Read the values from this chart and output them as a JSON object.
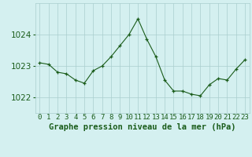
{
  "x": [
    0,
    1,
    2,
    3,
    4,
    5,
    6,
    7,
    8,
    9,
    10,
    11,
    12,
    13,
    14,
    15,
    16,
    17,
    18,
    19,
    20,
    21,
    22,
    23
  ],
  "y": [
    1023.1,
    1023.05,
    1022.8,
    1022.75,
    1022.55,
    1022.45,
    1022.85,
    1023.0,
    1023.3,
    1023.65,
    1024.0,
    1024.5,
    1023.85,
    1023.3,
    1022.55,
    1022.2,
    1022.2,
    1022.1,
    1022.05,
    1022.4,
    1022.6,
    1022.55,
    1022.9,
    1023.2
  ],
  "line_color": "#1a5c1a",
  "marker": "+",
  "marker_color": "#1a5c1a",
  "bg_color": "#d4f0f0",
  "grid_color": "#aacece",
  "tick_label_color": "#1a5c1a",
  "ylabel_ticks": [
    1022,
    1023,
    1024
  ],
  "ylim": [
    1021.5,
    1025.0
  ],
  "xlim": [
    -0.5,
    23.5
  ],
  "xlabel": "Graphe pression niveau de la mer (hPa)",
  "xlabel_fontsize": 7.5,
  "tick_fontsize": 6.5,
  "ytick_fontsize": 7.5
}
